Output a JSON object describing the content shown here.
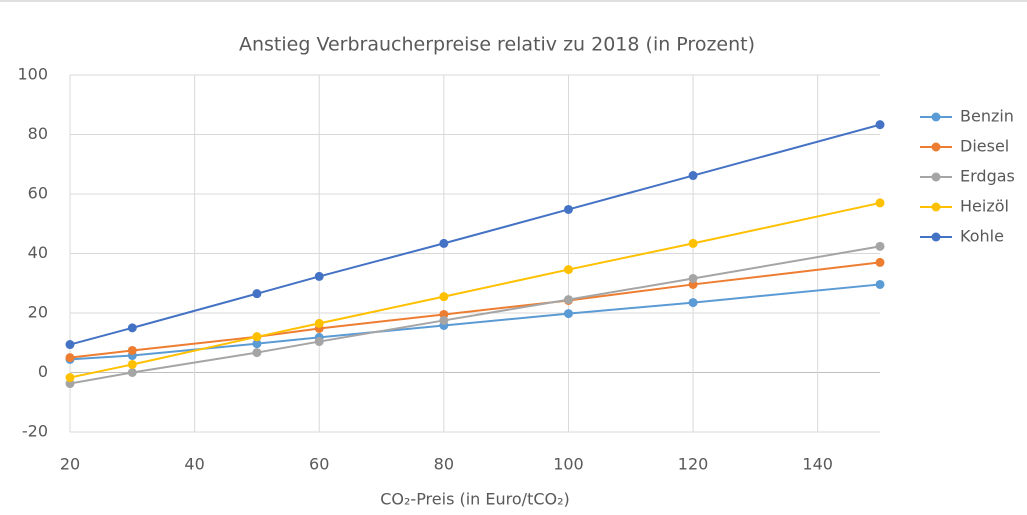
{
  "chart_data": {
    "type": "line",
    "title": "Anstieg Verbraucherpreise  relativ zu 2018 (in Prozent)",
    "x_label": "CO₂-Preis (in Euro/tCO₂)",
    "x": [
      20,
      30,
      50,
      60,
      80,
      100,
      120,
      150
    ],
    "series": [
      {
        "name": "Benzin",
        "color": "#5b9bd5",
        "values": [
          4.4,
          5.7,
          9.7,
          11.8,
          15.8,
          19.8,
          23.5,
          29.6
        ]
      },
      {
        "name": "Diesel",
        "color": "#ed7d31",
        "values": [
          5,
          7.4,
          12,
          14.8,
          19.5,
          24.2,
          29.6,
          37
        ]
      },
      {
        "name": "Erdgas",
        "color": "#a5a5a5",
        "values": [
          -3.7,
          0,
          6.7,
          10.4,
          17.5,
          24.5,
          31.6,
          42.4
        ]
      },
      {
        "name": "Heizöl",
        "color": "#ffc000",
        "values": [
          -1.7,
          2.7,
          12,
          16.5,
          25.5,
          34.6,
          43.4,
          57
        ]
      },
      {
        "name": "Kohle",
        "color": "#4472c4",
        "values": [
          9.4,
          15,
          26.5,
          32.3,
          43.4,
          54.8,
          66.2,
          83.3
        ]
      }
    ],
    "xlim": [
      20,
      150
    ],
    "xticks": [
      20,
      40,
      60,
      80,
      100,
      120,
      140
    ],
    "ylim": [
      -20,
      100
    ],
    "yticks": [
      -20,
      0,
      20,
      40,
      60,
      80,
      100
    ],
    "grid": true,
    "legend": "right"
  }
}
